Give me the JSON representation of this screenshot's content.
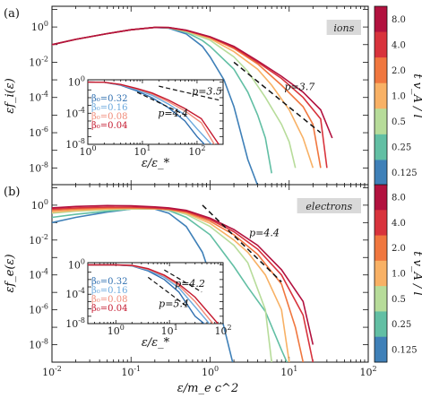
{
  "panels": [
    {
      "label": "(a)",
      "species_tag": "ions",
      "ylabel": "εf_i(ε)",
      "slope_label": "p=3.7",
      "inset": {
        "xlabel": "ε/ε_*",
        "slope_labels": [
          "p=3.5",
          "p=4.4"
        ]
      }
    },
    {
      "label": "(b)",
      "species_tag": "electrons",
      "ylabel": "εf_e(ε)",
      "slope_label": "p=4.4",
      "inset": {
        "xlabel": "ε/ε_*",
        "slope_labels": [
          "p=4.2",
          "p=5.4"
        ]
      }
    }
  ],
  "xlabel": "ε/m_e c^2",
  "colorbar": {
    "label": "t v_A / l",
    "ticks": [
      "8.0",
      "4.0",
      "2.0",
      "1.0",
      "0.5",
      "0.25",
      "0.125"
    ],
    "colors": [
      "#b2123f",
      "#d8333c",
      "#f0773f",
      "#f8b165",
      "#b7dc9a",
      "#62bfa4",
      "#3f80b8"
    ]
  },
  "legend": [
    {
      "label": "β₀=0.32",
      "color": "#2f6fb0"
    },
    {
      "label": "β₀=0.16",
      "color": "#6aa8dd"
    },
    {
      "label": "β₀=0.08",
      "color": "#f08a78"
    },
    {
      "label": "β₀=0.04",
      "color": "#c4182e"
    }
  ],
  "chart_data": [
    {
      "type": "line",
      "panel": "a",
      "xscale": "log",
      "yscale": "log",
      "xlim": [
        0.01,
        100
      ],
      "ylim": [
        1e-09,
        15.0
      ],
      "xlabel": "",
      "ylabel": "εf_i(ε)",
      "xticks": [
        "10^-2",
        "10^-1",
        "10^0",
        "10^1",
        "10^2"
      ],
      "yticks": [
        "10^-8",
        "10^-6",
        "10^-4",
        "10^-2",
        "10^0"
      ],
      "annotation": "ions",
      "series": [
        {
          "color_key": "0.125",
          "x": [
            0.01,
            0.02,
            0.05,
            0.1,
            0.2,
            0.3,
            0.5,
            0.8,
            1,
            1.5,
            2,
            3,
            4,
            5
          ],
          "y": [
            0.1,
            0.2,
            0.42,
            0.7,
            0.95,
            0.85,
            0.4,
            0.08,
            0.02,
            0.001,
            3e-05,
            3e-08,
            1e-09,
            1e-10
          ]
        },
        {
          "color_key": "0.25",
          "x": [
            0.01,
            0.02,
            0.05,
            0.1,
            0.2,
            0.3,
            0.5,
            0.8,
            1,
            2,
            3,
            4,
            5,
            6
          ],
          "y": [
            0.1,
            0.2,
            0.42,
            0.7,
            0.95,
            0.9,
            0.5,
            0.17,
            0.08,
            0.004,
            0.0002,
            1e-05,
            5e-07,
            5e-09
          ]
        },
        {
          "color_key": "0.5",
          "x": [
            0.01,
            0.02,
            0.05,
            0.1,
            0.2,
            0.3,
            0.5,
            1,
            2,
            3,
            5,
            8,
            10,
            12
          ],
          "y": [
            0.1,
            0.2,
            0.42,
            0.7,
            0.95,
            0.9,
            0.55,
            0.18,
            0.02,
            0.003,
            0.0001,
            3e-06,
            3e-07,
            1e-08
          ]
        },
        {
          "color_key": "1.0",
          "x": [
            0.01,
            0.02,
            0.05,
            0.1,
            0.2,
            0.3,
            0.5,
            1,
            2,
            4,
            6,
            10,
            15,
            20
          ],
          "y": [
            0.1,
            0.2,
            0.42,
            0.7,
            0.95,
            0.92,
            0.6,
            0.22,
            0.04,
            0.004,
            0.0005,
            2e-05,
            5e-07,
            1e-08
          ]
        },
        {
          "color_key": "2.0",
          "x": [
            0.01,
            0.02,
            0.05,
            0.1,
            0.2,
            0.3,
            0.5,
            1,
            2,
            4,
            8,
            15,
            20,
            25
          ],
          "y": [
            0.1,
            0.2,
            0.42,
            0.7,
            0.95,
            0.92,
            0.62,
            0.25,
            0.06,
            0.008,
            0.0005,
            3e-05,
            3e-06,
            1e-08
          ]
        },
        {
          "color_key": "4.0",
          "x": [
            0.01,
            0.02,
            0.05,
            0.1,
            0.2,
            0.3,
            0.5,
            1,
            2,
            4,
            8,
            15,
            25,
            30
          ],
          "y": [
            0.1,
            0.2,
            0.42,
            0.7,
            0.95,
            0.93,
            0.65,
            0.27,
            0.07,
            0.01,
            0.0012,
            0.0001,
            6e-06,
            1e-08
          ]
        },
        {
          "color_key": "8.0",
          "x": [
            0.01,
            0.02,
            0.05,
            0.1,
            0.2,
            0.3,
            0.5,
            1,
            2,
            4,
            8,
            15,
            25,
            35
          ],
          "y": [
            0.1,
            0.2,
            0.42,
            0.7,
            0.95,
            0.93,
            0.66,
            0.28,
            0.08,
            0.012,
            0.0016,
            0.0002,
            2e-05,
            5e-07
          ]
        }
      ],
      "guide": {
        "label": "p=3.7",
        "x": [
          2,
          25
        ],
        "y": [
          0.01,
          1e-06
        ]
      },
      "inset": {
        "xlim": [
          1,
          300
        ],
        "ylim": [
          1e-08,
          2
        ],
        "xlabel": "ε/ε_*",
        "xticks": [
          "10^0",
          "10^1",
          "10^2"
        ],
        "yticks": [
          "10^-8",
          "10^-4",
          "10^0"
        ],
        "series": [
          {
            "legend_index": 0,
            "x": [
              1,
              2,
              4,
              8,
              15,
              30,
              60,
              100,
              150
            ],
            "y": [
              1,
              0.95,
              0.4,
              0.07,
              0.01,
              0.0005,
              1e-05,
              1e-07,
              1e-09
            ]
          },
          {
            "legend_index": 1,
            "x": [
              1,
              2,
              4,
              8,
              15,
              30,
              60,
              100,
              200
            ],
            "y": [
              1,
              0.95,
              0.45,
              0.1,
              0.02,
              0.0015,
              6e-05,
              1e-06,
              1e-09
            ]
          },
          {
            "legend_index": 2,
            "x": [
              1,
              2,
              4,
              8,
              15,
              30,
              60,
              120,
              220
            ],
            "y": [
              1,
              0.95,
              0.48,
              0.13,
              0.03,
              0.003,
              0.0002,
              6e-06,
              1e-09
            ]
          },
          {
            "legend_index": 3,
            "x": [
              1,
              2,
              4,
              8,
              15,
              30,
              60,
              120,
              250
            ],
            "y": [
              1,
              0.95,
              0.5,
              0.15,
              0.04,
              0.005,
              0.0004,
              2e-05,
              1e-08
            ]
          }
        ],
        "guides": [
          {
            "label": "p=3.5",
            "x": [
              20,
              250
            ],
            "y": [
              0.3,
              0.005
            ]
          },
          {
            "label": "p=4.4",
            "x": [
              8,
              60
            ],
            "y": [
              0.05,
              6e-05
            ]
          }
        ]
      }
    },
    {
      "type": "line",
      "panel": "b",
      "xscale": "log",
      "yscale": "log",
      "xlim": [
        0.01,
        100
      ],
      "ylim": [
        1e-09,
        15.0
      ],
      "xlabel": "ε/m_e c^2",
      "ylabel": "εf_e(ε)",
      "xticks": [
        "10^-2",
        "10^-1",
        "10^0",
        "10^1",
        "10^2"
      ],
      "yticks": [
        "10^-8",
        "10^-6",
        "10^-4",
        "10^-2",
        "10^0"
      ],
      "annotation": "electrons",
      "series": [
        {
          "color_key": "0.125",
          "x": [
            0.01,
            0.02,
            0.05,
            0.1,
            0.2,
            0.3,
            0.5,
            0.8,
            1,
            1.5,
            2
          ],
          "y": [
            0.1,
            0.2,
            0.4,
            0.6,
            0.6,
            0.35,
            0.06,
            0.002,
            0.0001,
            1e-07,
            1e-10
          ]
        },
        {
          "color_key": "0.25",
          "x": [
            0.01,
            0.02,
            0.05,
            0.1,
            0.2,
            0.3,
            0.5,
            1,
            2,
            3,
            5,
            8,
            10
          ],
          "y": [
            0.2,
            0.3,
            0.45,
            0.6,
            0.65,
            0.5,
            0.2,
            0.02,
            0.0003,
            2e-05,
            8e-07,
            5e-09,
            5e-10
          ]
        },
        {
          "color_key": "0.5",
          "x": [
            0.01,
            0.02,
            0.05,
            0.1,
            0.2,
            0.3,
            0.5,
            1,
            2,
            3,
            5,
            6
          ],
          "y": [
            0.35,
            0.45,
            0.55,
            0.6,
            0.62,
            0.55,
            0.3,
            0.06,
            0.005,
            0.0005,
            1e-06,
            1e-09
          ]
        },
        {
          "color_key": "1.0",
          "x": [
            0.01,
            0.02,
            0.05,
            0.1,
            0.2,
            0.3,
            0.5,
            1,
            2,
            3,
            5,
            8,
            10
          ],
          "y": [
            0.4,
            0.5,
            0.6,
            0.65,
            0.62,
            0.55,
            0.35,
            0.09,
            0.01,
            0.002,
            0.0001,
            1e-06,
            1e-09
          ]
        },
        {
          "color_key": "2.0",
          "x": [
            0.01,
            0.02,
            0.05,
            0.1,
            0.2,
            0.3,
            0.5,
            1,
            2,
            4,
            8,
            12,
            15
          ],
          "y": [
            0.5,
            0.6,
            0.68,
            0.7,
            0.65,
            0.58,
            0.4,
            0.12,
            0.02,
            0.0015,
            3e-05,
            1e-07,
            1e-09
          ]
        },
        {
          "color_key": "4.0",
          "x": [
            0.01,
            0.02,
            0.05,
            0.1,
            0.2,
            0.3,
            0.5,
            1,
            2,
            4,
            8,
            15,
            20
          ],
          "y": [
            0.6,
            0.7,
            0.78,
            0.78,
            0.7,
            0.62,
            0.44,
            0.15,
            0.03,
            0.003,
            0.0001,
            5e-07,
            1e-09
          ]
        },
        {
          "color_key": "8.0",
          "x": [
            0.01,
            0.02,
            0.05,
            0.1,
            0.2,
            0.3,
            0.5,
            1,
            2,
            4,
            8,
            15,
            20
          ],
          "y": [
            0.7,
            0.85,
            0.95,
            0.92,
            0.8,
            0.7,
            0.5,
            0.18,
            0.04,
            0.005,
            0.0002,
            3e-06,
            1e-08
          ]
        }
      ],
      "guide": {
        "label": "p=4.4",
        "x": [
          0.8,
          8
        ],
        "y": [
          1,
          4e-05
        ]
      },
      "inset": {
        "xlim": [
          0.3,
          100
        ],
        "ylim": [
          1e-08,
          2
        ],
        "xlabel": "ε/ε_*",
        "xticks": [
          "10^0",
          "10^1",
          "10^2"
        ],
        "yticks": [
          "10^-8",
          "10^-4",
          "10^0"
        ],
        "series": [
          {
            "legend_index": 0,
            "x": [
              0.3,
              1,
              2,
              4,
              8,
              15,
              30,
              50
            ],
            "y": [
              1,
              1,
              0.7,
              0.15,
              0.01,
              0.0002,
              1e-07,
              1e-09
            ]
          },
          {
            "legend_index": 1,
            "x": [
              0.3,
              1,
              2,
              4,
              8,
              15,
              30,
              60
            ],
            "y": [
              1,
              1,
              0.75,
              0.2,
              0.02,
              0.0007,
              2e-06,
              1e-09
            ]
          },
          {
            "legend_index": 2,
            "x": [
              0.3,
              1,
              2,
              4,
              8,
              15,
              30,
              70
            ],
            "y": [
              1,
              1,
              0.8,
              0.25,
              0.03,
              0.0015,
              1e-05,
              1e-09
            ]
          },
          {
            "legend_index": 3,
            "x": [
              0.3,
              1,
              2,
              4,
              8,
              15,
              30,
              80
            ],
            "y": [
              1,
              1,
              0.85,
              0.3,
              0.04,
              0.0025,
              4e-05,
              1e-08
            ]
          }
        ],
        "guides": [
          {
            "label": "p=4.2",
            "x": [
              8,
              40
            ],
            "y": [
              0.2,
              0.0002
            ]
          },
          {
            "label": "p=5.4",
            "x": [
              4,
              20
            ],
            "y": [
              0.02,
              3e-06
            ]
          }
        ]
      }
    }
  ]
}
